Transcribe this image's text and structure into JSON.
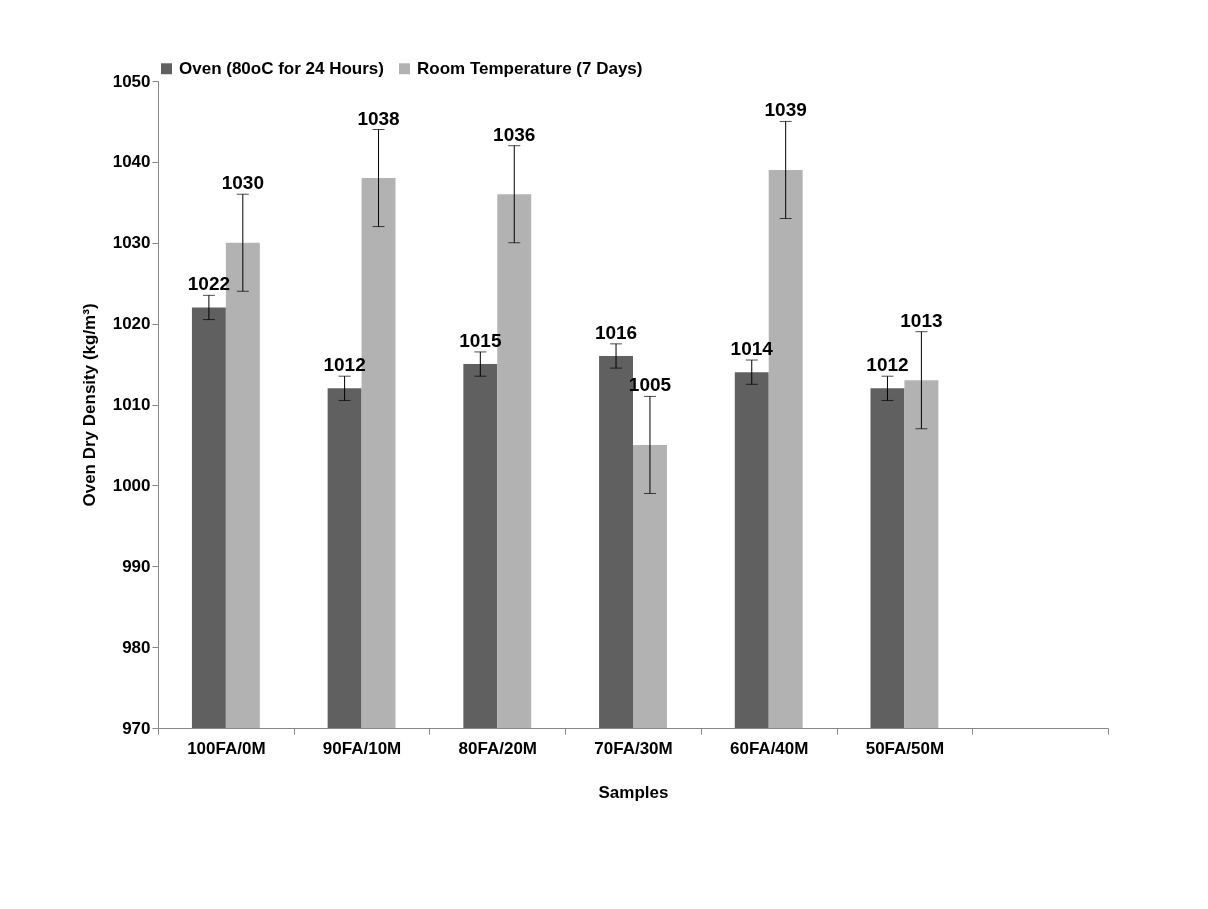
{
  "chart_data": {
    "type": "bar",
    "xlabel": "Samples",
    "ylabel": "Oven Dry Density (kg/m³)",
    "categories": [
      "100FA/0M",
      "90FA/10M",
      "80FA/20M",
      "70FA/30M",
      "60FA/40M",
      "50FA/50M",
      null
    ],
    "series": [
      {
        "name": "Oven (80oC for 24 Hours)",
        "color": "#606060",
        "values": [
          1022,
          1012,
          1015,
          1016,
          1014,
          1012,
          null
        ],
        "errors": [
          1.5,
          1.5,
          1.5,
          1.5,
          1.5,
          1.5,
          null
        ]
      },
      {
        "name": "Room Temperature (7 Days)",
        "color": "#b2b2b2",
        "values": [
          1030,
          1038,
          1036,
          1005,
          1039,
          1013,
          null
        ],
        "errors": [
          6,
          6,
          6,
          6,
          6,
          6,
          null
        ]
      }
    ],
    "ylim": [
      970,
      1050
    ],
    "yticks": [
      970,
      980,
      990,
      1000,
      1010,
      1020,
      1030,
      1040,
      1050
    ],
    "data_labels": true,
    "legend": "top",
    "grid": false
  }
}
